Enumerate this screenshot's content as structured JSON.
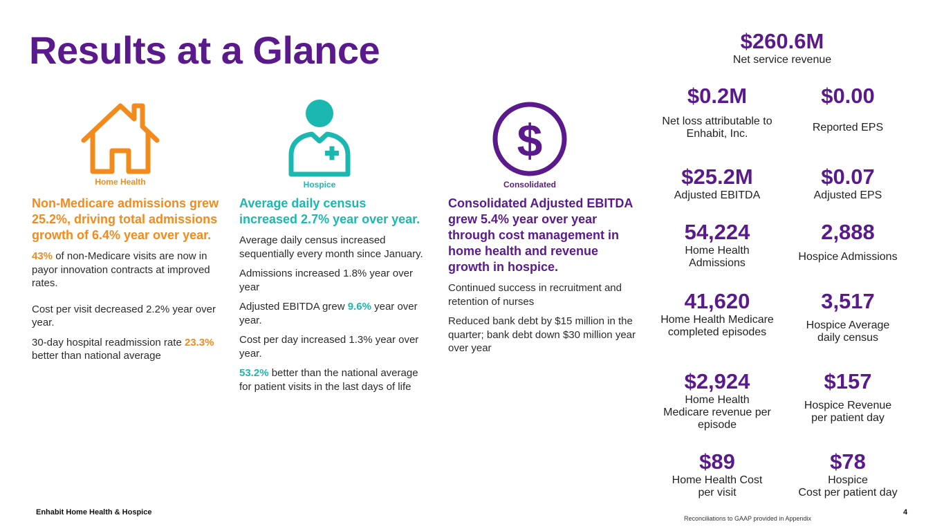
{
  "title": "Results at a Glance",
  "colors": {
    "purple": "#5a1a8c",
    "orange": "#f38a1c",
    "teal": "#1ab8b0"
  },
  "icons": {
    "home_health": {
      "name": "house-icon",
      "label": "Home Health"
    },
    "hospice": {
      "name": "nurse-icon",
      "label": "Hospice"
    },
    "consolidated": {
      "name": "dollar-circle-icon",
      "label": "Consolidated"
    }
  },
  "home_health": {
    "headline": "Non-Medicare admissions grew 25.2%, driving total admissions growth of 6.4% year over year.",
    "p1_highlight": "43%",
    "p1_text": " of non-Medicare visits are now in payor innovation contracts at improved rates.",
    "p2": "Cost per visit decreased 2.2% year over year.",
    "p3_text": "30-day hospital readmission rate ",
    "p3_highlight": "23.3%",
    "p3_text2": " better than national average"
  },
  "hospice": {
    "headline": "Average daily census increased 2.7% year over year.",
    "p1": "Average daily census increased sequentially every month since January.",
    "p2": "Admissions increased 1.8% year over year",
    "p3_text": "Adjusted EBITDA grew ",
    "p3_highlight": "9.6%",
    "p3_text2": " year over year.",
    "p4": "Cost per day increased 1.3% year over year.",
    "p5_highlight": "53.2%",
    "p5_text": " better than the national average for patient visits in the last days of life"
  },
  "consolidated": {
    "headline": "Consolidated Adjusted EBITDA grew 5.4% year over year through cost management in home health and revenue growth in hospice.",
    "p1": "Continued success in recruitment and retention of nurses",
    "p2": "Reduced bank debt by $15 million in the quarter; bank debt down $30 million year over year"
  },
  "metrics": {
    "net_revenue": {
      "value": "$260.6M",
      "label": "Net service revenue"
    },
    "net_loss": {
      "value": "$0.2M",
      "label": "Net loss attributable to Enhabit, Inc."
    },
    "reported_eps": {
      "value": "$0.00",
      "label": "Reported EPS"
    },
    "adj_ebitda": {
      "value": "$25.2M",
      "label": "Adjusted EBITDA"
    },
    "adj_eps": {
      "value": "$0.07",
      "label": "Adjusted EPS"
    },
    "hh_admissions": {
      "value": "54,224",
      "label": "Home Health Admissions"
    },
    "hospice_admissions": {
      "value": "2,888",
      "label": "Hospice Admissions"
    },
    "hh_episodes": {
      "value": "41,620",
      "label": "Home Health Medicare completed episodes"
    },
    "hospice_census": {
      "value": "3,517",
      "label": "Hospice Average daily census"
    },
    "hh_revenue_episode": {
      "value": "$2,924",
      "label": "Home Health Medicare revenue per episode"
    },
    "hospice_revenue_day": {
      "value": "$157",
      "label": "Hospice Revenue per patient day"
    },
    "hh_cost_visit": {
      "value": "$89",
      "label": "Home Health Cost per visit"
    },
    "hospice_cost_day": {
      "value": "$78",
      "label_line1": "Hospice",
      "label_line2": "Cost per patient day"
    }
  },
  "footer": {
    "company": "Enhabit Home Health & Hospice",
    "note": "Reconciliations to GAAP provided in Appendix",
    "page": "4"
  }
}
